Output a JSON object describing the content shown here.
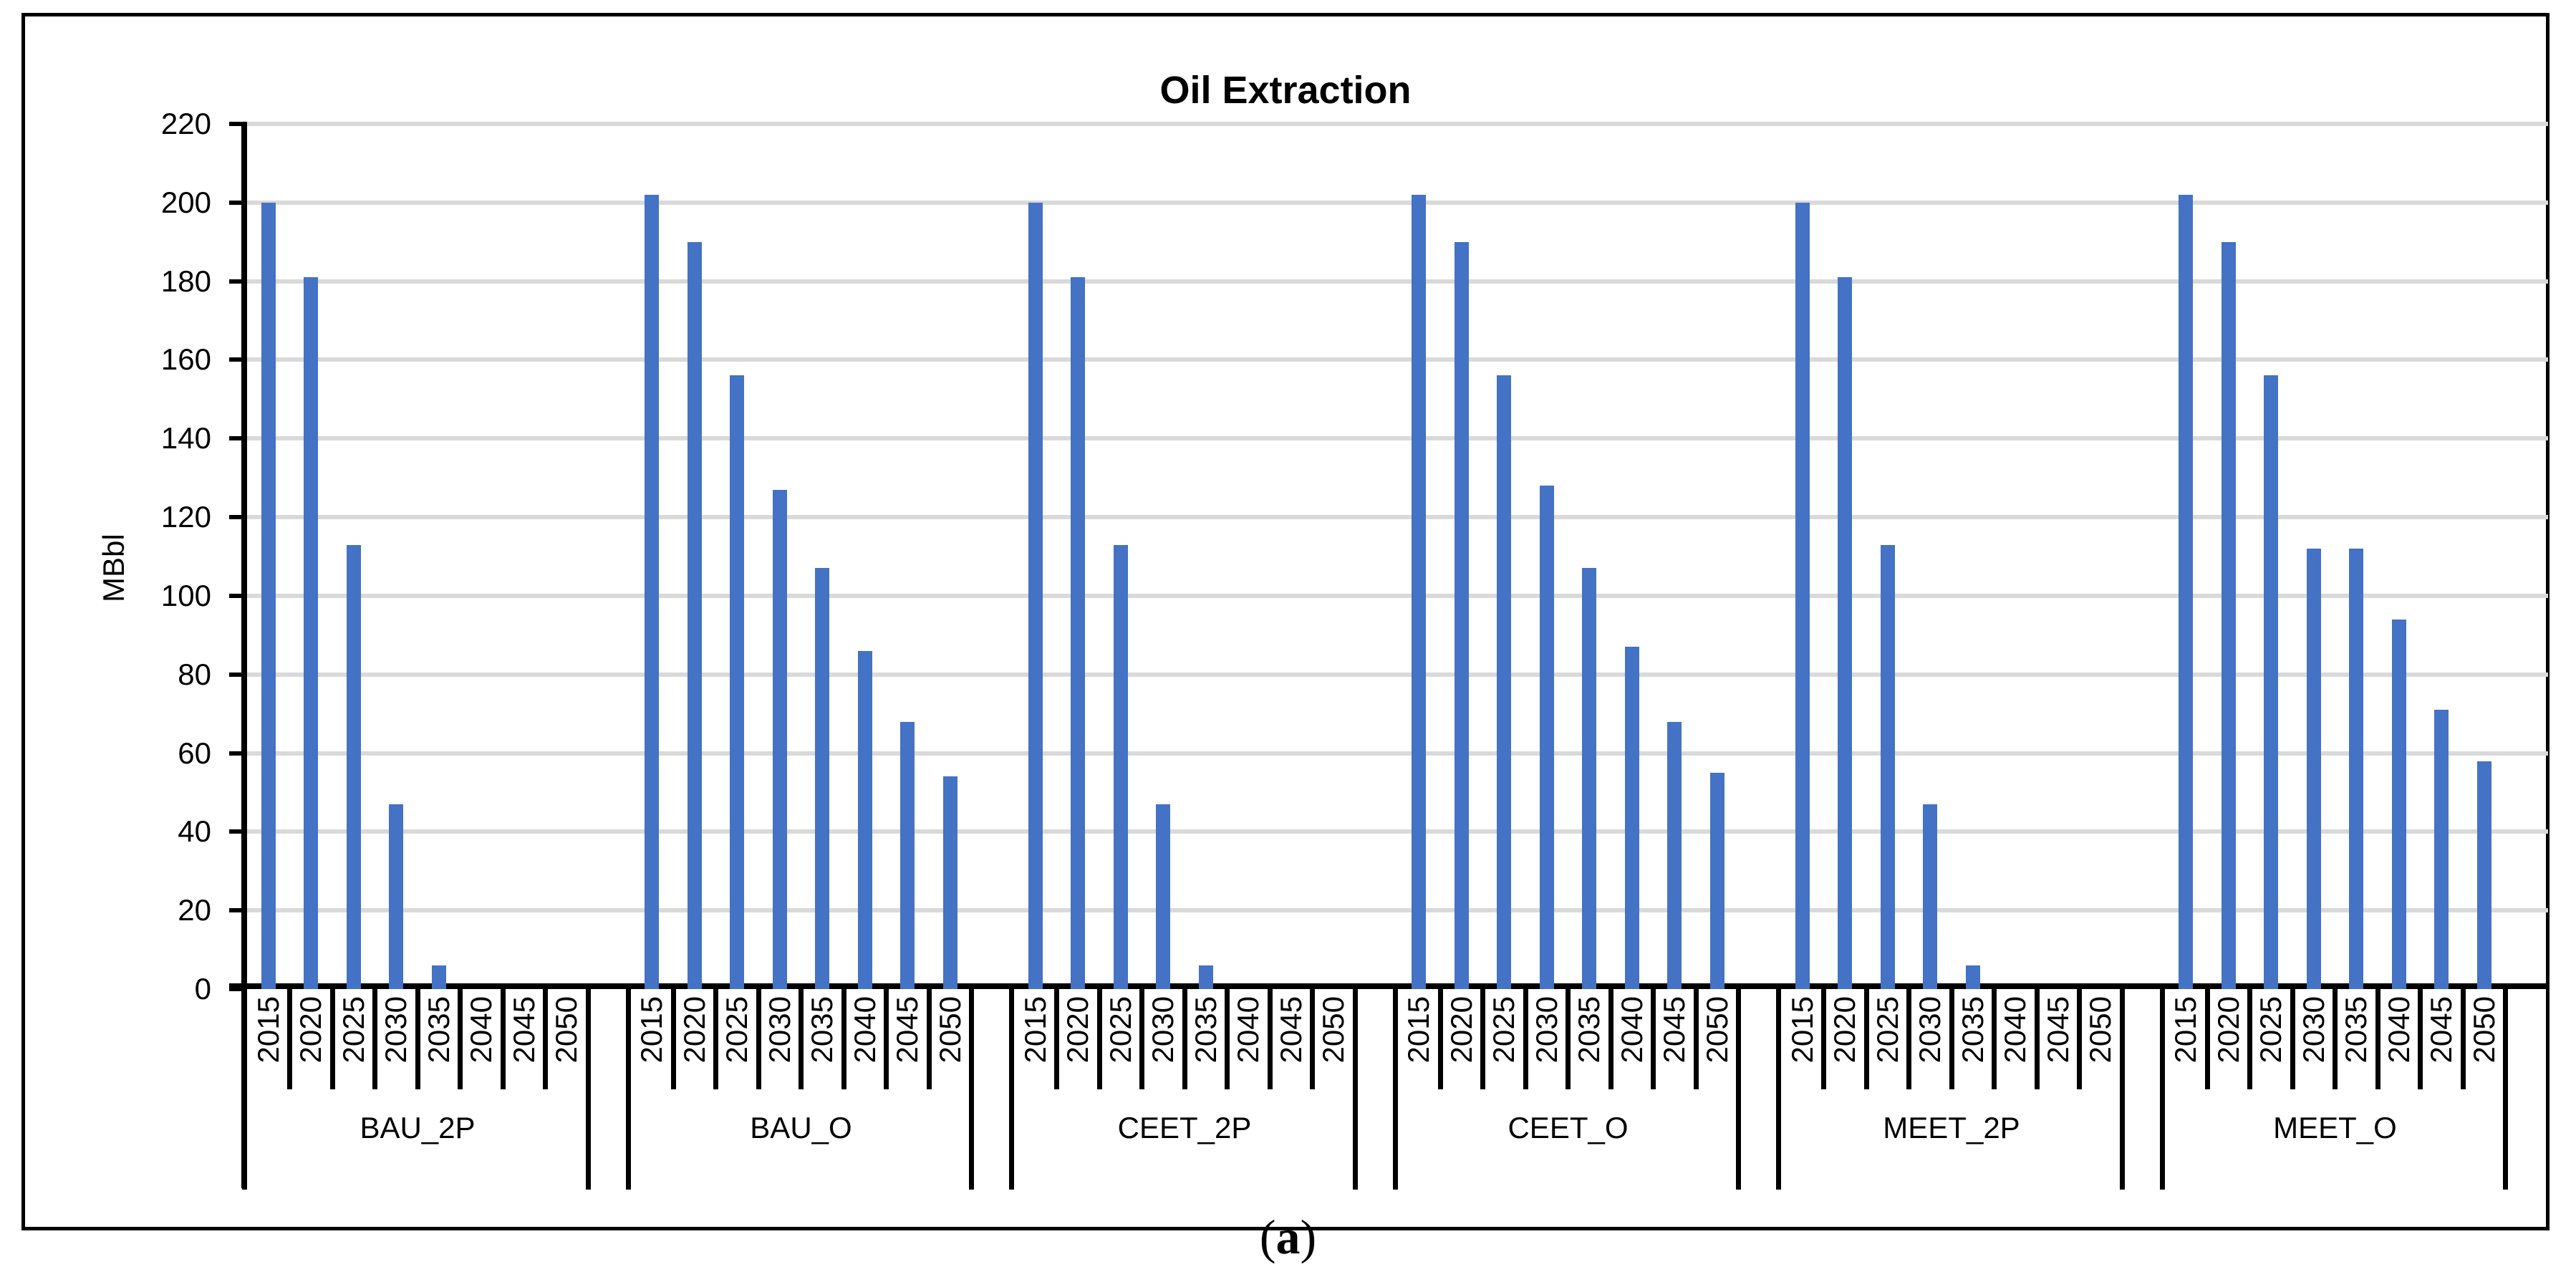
{
  "chart_data": {
    "type": "bar",
    "title": "Oil Extraction",
    "ylabel": "MBbl",
    "ylim": [
      0,
      220
    ],
    "ytick_step": 20,
    "grid": true,
    "legend_position": "none",
    "bar_color": "#4472C4",
    "gridline_color": "#D9D9D9",
    "axis_color": "#000000",
    "categories_per_group": [
      "2015",
      "2020",
      "2025",
      "2030",
      "2035",
      "2040",
      "2045",
      "2050"
    ],
    "groups": [
      {
        "label": "BAU_2P",
        "values": [
          200,
          181,
          113,
          47,
          6,
          0,
          0,
          0
        ]
      },
      {
        "label": "BAU_O",
        "values": [
          202,
          190,
          156,
          127,
          107,
          86,
          68,
          54
        ]
      },
      {
        "label": "CEET_2P",
        "values": [
          200,
          181,
          113,
          47,
          6,
          0,
          0,
          0
        ]
      },
      {
        "label": "CEET_O",
        "values": [
          202,
          190,
          156,
          128,
          107,
          87,
          68,
          55
        ]
      },
      {
        "label": "MEET_2P",
        "values": [
          200,
          181,
          113,
          47,
          6,
          0,
          0,
          0
        ]
      },
      {
        "label": "MEET_O",
        "values": [
          202,
          190,
          156,
          112,
          112,
          94,
          71,
          58
        ]
      }
    ]
  },
  "caption": {
    "open": "(",
    "letter": "a",
    "close": ")"
  }
}
